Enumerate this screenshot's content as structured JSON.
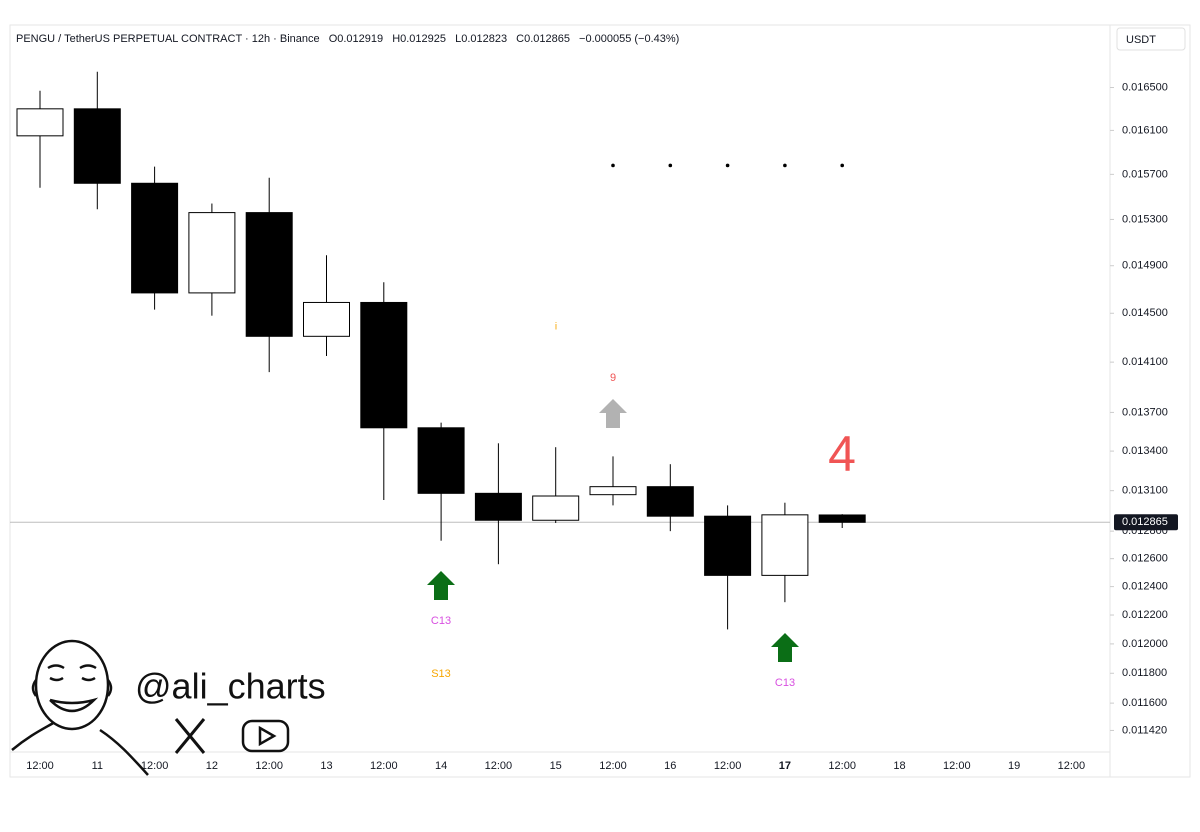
{
  "chart_data": {
    "type": "candlestick",
    "title": "PENGU / TetherUS PERPETUAL CONTRACT · 12h · Binance",
    "ohlc_header": [
      "O0.012919",
      "H0.012925",
      "L0.012823",
      "C0.012865",
      "−0.000055 (−0.43%)"
    ],
    "currency": "USDT",
    "categories": [
      "12:00",
      "11",
      "12:00",
      "12",
      "12:00",
      "13",
      "12:00",
      "14",
      "12:00",
      "15",
      "12:00",
      "16",
      "12:00",
      "17",
      "12:00",
      "18",
      "12:00",
      "19",
      "12:00"
    ],
    "open": [
      0.01605,
      0.0163,
      0.01562,
      0.01467,
      0.01536,
      0.01431,
      0.01459,
      0.01358,
      0.01308,
      0.01288,
      0.01307,
      0.01313,
      0.01291,
      0.01248,
      0.012919,
      null,
      null,
      null,
      null
    ],
    "high": [
      0.01647,
      0.01665,
      0.01577,
      0.01544,
      0.01567,
      0.01499,
      0.01476,
      0.01362,
      0.01346,
      0.01343,
      0.01336,
      0.0133,
      0.01299,
      0.01301,
      0.012925,
      null,
      null,
      null,
      null
    ],
    "low": [
      0.01558,
      0.01539,
      0.01453,
      0.01448,
      0.01402,
      0.01415,
      0.01303,
      0.01273,
      0.01256,
      0.01286,
      0.01299,
      0.0128,
      0.0121,
      0.01229,
      0.012823,
      null,
      null,
      null,
      null
    ],
    "close": [
      0.0163,
      0.01562,
      0.01467,
      0.01536,
      0.01431,
      0.01459,
      0.01358,
      0.01308,
      0.01288,
      0.01306,
      0.01313,
      0.01291,
      0.01248,
      0.01292,
      0.012865,
      null,
      null,
      null,
      null
    ],
    "up_color": "#ffffff",
    "down_color": "#000000",
    "dot_levels": [
      null,
      null,
      null,
      null,
      null,
      null,
      null,
      null,
      null,
      null,
      0.01578,
      0.01578,
      0.01578,
      0.01578,
      0.01578,
      null,
      null,
      null,
      null
    ],
    "last_price": 0.012865,
    "log_scale": true,
    "ylim": [
      0.01128,
      0.01681
    ],
    "yticks": [
      {
        "value": 0.0165,
        "label": "0.016500"
      },
      {
        "value": 0.0161,
        "label": "0.016100"
      },
      {
        "value": 0.0157,
        "label": "0.015700"
      },
      {
        "value": 0.0153,
        "label": "0.015300"
      },
      {
        "value": 0.0149,
        "label": "0.014900"
      },
      {
        "value": 0.0145,
        "label": "0.014500"
      },
      {
        "value": 0.0141,
        "label": "0.014100"
      },
      {
        "value": 0.0137,
        "label": "0.013700"
      },
      {
        "value": 0.0134,
        "label": "0.013400"
      },
      {
        "value": 0.0131,
        "label": "0.013100"
      },
      {
        "value": 0.0128,
        "label": "0.012800"
      },
      {
        "value": 0.0126,
        "label": "0.012600"
      },
      {
        "value": 0.0124,
        "label": "0.012400"
      },
      {
        "value": 0.0122,
        "label": "0.012200"
      },
      {
        "value": 0.012,
        "label": "0.012000"
      },
      {
        "value": 0.0118,
        "label": "0.011800"
      },
      {
        "value": 0.0116,
        "label": "0.011600"
      },
      {
        "value": 0.01142,
        "label": "0.011420"
      }
    ],
    "annotations": [
      {
        "text": "i",
        "color": "#f7a600"
      },
      {
        "text": "9",
        "color": "#f05454"
      },
      {
        "text": "C13",
        "color": "#d84fe0"
      },
      {
        "text": "S13",
        "color": "#f7a600"
      },
      {
        "text": "C13",
        "color": "#d84fe0"
      },
      {
        "text": "4",
        "color": "#f05454"
      }
    ],
    "watermark": "@ali_charts"
  }
}
